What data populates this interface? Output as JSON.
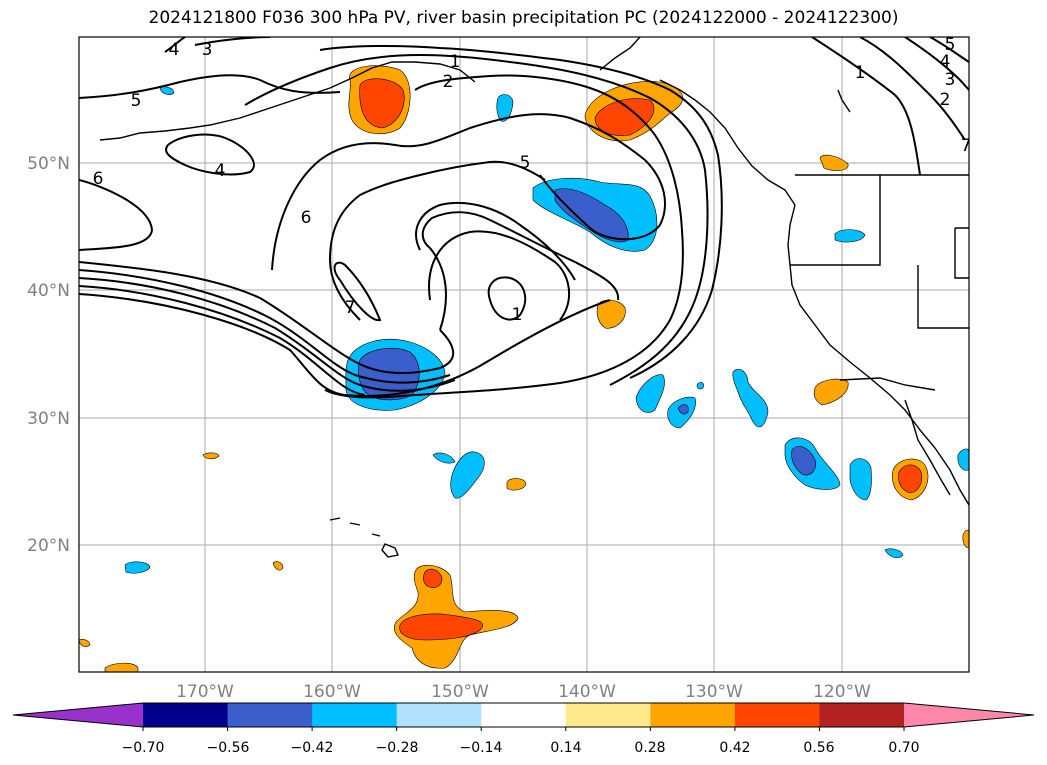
{
  "title": "2024121800 F036 300 hPa PV, river basin precipitation PC (2024122000 - 2024122300)",
  "map": {
    "lat_labels": [
      "50°N",
      "40°N",
      "30°N",
      "20°N"
    ],
    "lon_labels": [
      "170°W",
      "160°W",
      "150°W",
      "140°W",
      "130°W",
      "120°W"
    ],
    "pv_contour_labels": [
      {
        "id": "c1a",
        "text": "1"
      },
      {
        "id": "c1b",
        "text": "1"
      },
      {
        "id": "c1c",
        "text": "1"
      },
      {
        "id": "c2a",
        "text": "2"
      },
      {
        "id": "c2b",
        "text": "2"
      },
      {
        "id": "c3a",
        "text": "3"
      },
      {
        "id": "c3b",
        "text": "3"
      },
      {
        "id": "c4a",
        "text": "4"
      },
      {
        "id": "c4b",
        "text": "4"
      },
      {
        "id": "c4c",
        "text": "4"
      },
      {
        "id": "c5a",
        "text": "5"
      },
      {
        "id": "c5b",
        "text": "5"
      },
      {
        "id": "c5c",
        "text": "5"
      },
      {
        "id": "c6a",
        "text": "6"
      },
      {
        "id": "c6b",
        "text": "6"
      },
      {
        "id": "c7a",
        "text": "7"
      },
      {
        "id": "c7b",
        "text": "7"
      }
    ]
  },
  "colorbar": {
    "ticks": [
      "−0.70",
      "−0.56",
      "−0.42",
      "−0.28",
      "−0.14",
      "0.14",
      "0.28",
      "0.42",
      "0.56",
      "0.70"
    ],
    "colors": [
      "#9932cc",
      "#00008b",
      "#3a5fcd",
      "#00bfff",
      "#b0e2ff",
      "#ffffff",
      "#ffe98a",
      "#ffa500",
      "#ff4500",
      "#b22222",
      "#ff88aa"
    ]
  }
}
